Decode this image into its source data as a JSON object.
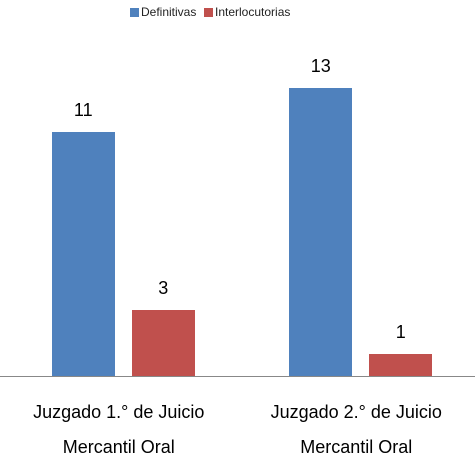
{
  "chart_data": {
    "type": "bar",
    "categories": [
      "Juzgado 1.° de Juicio Mercantil Oral",
      "Juzgado 2.° de Juicio Mercantil Oral"
    ],
    "series": [
      {
        "name": "Definitivas",
        "color": "#4f81bd",
        "values": [
          11,
          13
        ]
      },
      {
        "name": "Interlocutorias",
        "color": "#c0504d",
        "values": [
          3,
          1
        ]
      }
    ],
    "legend": "top"
  }
}
